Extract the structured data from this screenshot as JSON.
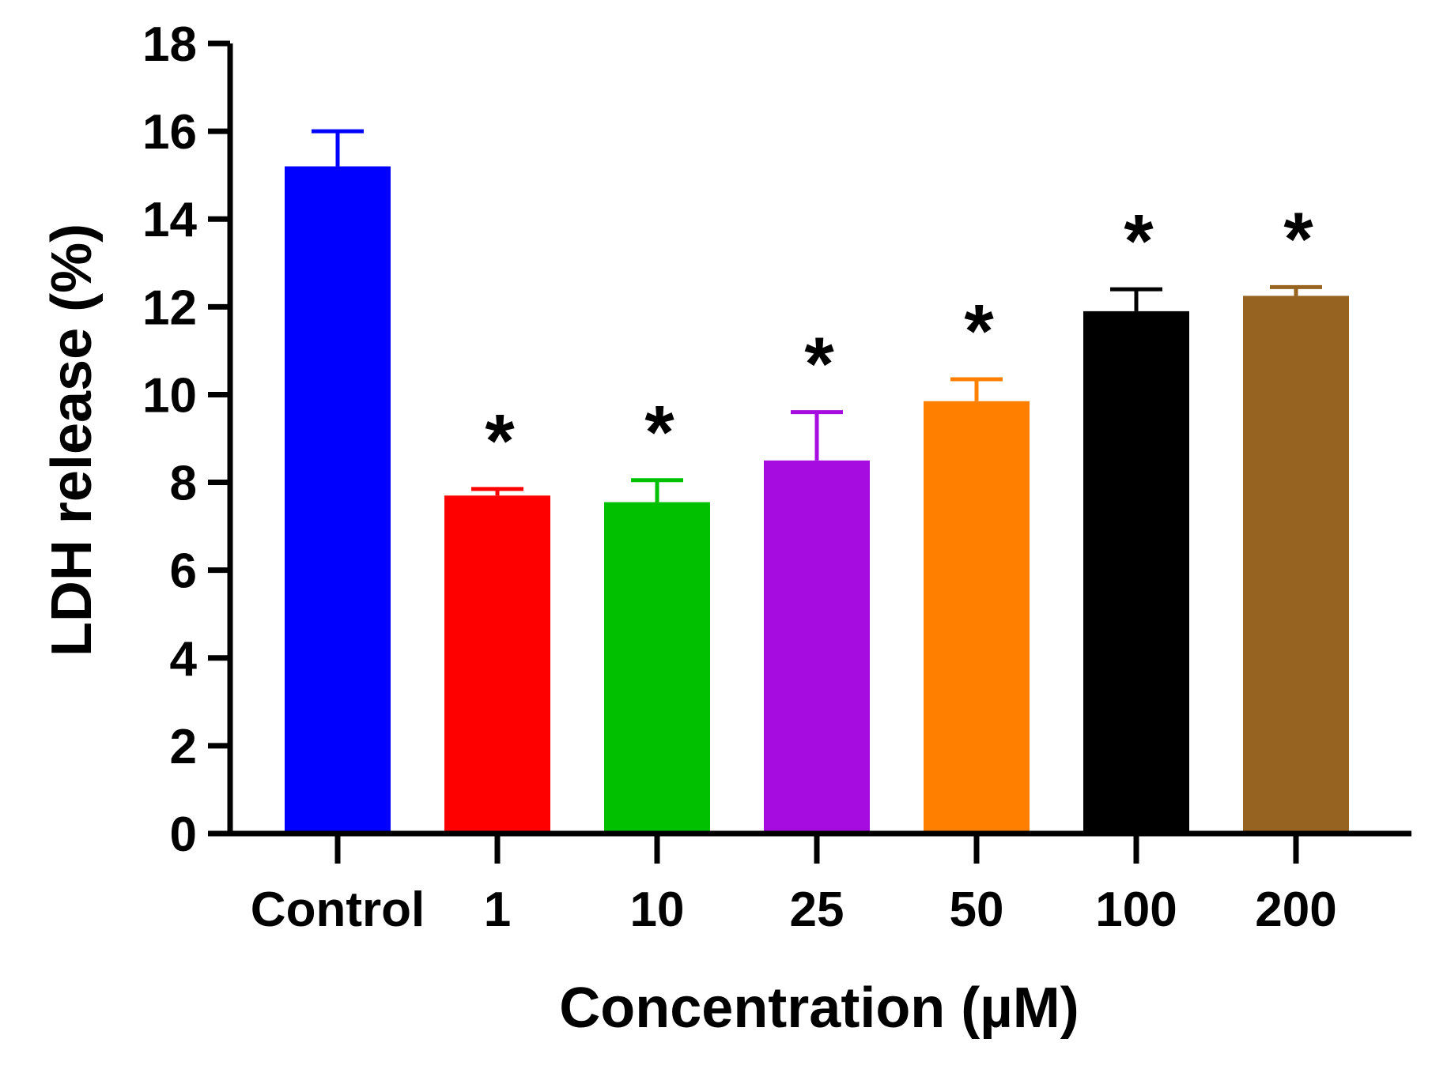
{
  "chart_data": {
    "type": "bar",
    "title": "",
    "xlabel": "Concentration (µM)",
    "ylabel": "LDH release (%)",
    "ylim": [
      0,
      18
    ],
    "yticks": [
      0,
      2,
      4,
      6,
      8,
      10,
      12,
      14,
      16,
      18
    ],
    "yticks_text": [
      "0",
      "2",
      "4",
      "6",
      "8",
      "10",
      "12",
      "14",
      "16",
      "18"
    ],
    "grid": false,
    "categories": [
      "Control",
      "1",
      "10",
      "25",
      "50",
      "100",
      "200"
    ],
    "values": [
      15.2,
      7.7,
      7.55,
      8.5,
      9.85,
      11.9,
      12.25
    ],
    "error_upper": [
      0.8,
      0.15,
      0.5,
      1.1,
      0.5,
      0.5,
      0.2
    ],
    "colors": [
      "#0000ff",
      "#ff0000",
      "#00c000",
      "#a60bdf",
      "#ff8000",
      "#000000",
      "#966321"
    ],
    "significance": [
      "",
      "*",
      "*",
      "*",
      "*",
      "*",
      "*"
    ]
  }
}
